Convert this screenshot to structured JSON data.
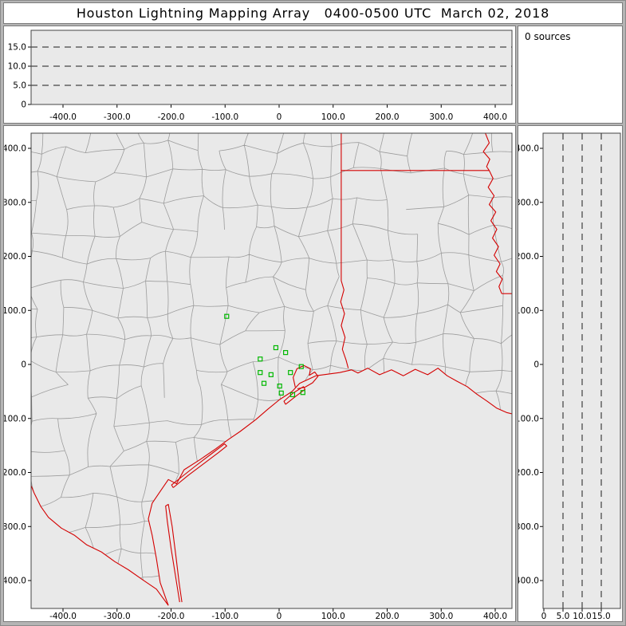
{
  "window": {
    "title": "Houston Lightning Mapping Array   0400-0500 UTC  March 02, 2018"
  },
  "status": {
    "sources": "0 sources"
  },
  "colors": {
    "plot_bg": "#e9e9e9",
    "frame": "#b5b5b5",
    "panel_border": "#7b7b7b",
    "border_red": "#d40000",
    "station_green": "#00b800",
    "county_gray": "#9c9c9c",
    "dash_black": "#1a1a1a"
  },
  "chart_data": [
    {
      "id": "altitude-vs-eastwest",
      "type": "scatter",
      "x_range": [
        -459,
        431
      ],
      "alt_range": [
        0,
        19.4
      ],
      "grid": "dashed-horizontal",
      "points": [],
      "alt_ticks": [
        {
          "v": 0,
          "label": "0"
        },
        {
          "v": 5,
          "label": "5.0"
        },
        {
          "v": 10,
          "label": "10.0"
        },
        {
          "v": 15,
          "label": "15.0"
        }
      ],
      "x_ticks": [
        {
          "v": -400,
          "label": "-400.0"
        },
        {
          "v": -300,
          "label": "-300.0"
        },
        {
          "v": -200,
          "label": "-200.0"
        },
        {
          "v": -100,
          "label": "-100.0"
        },
        {
          "v": 0,
          "label": "0"
        },
        {
          "v": 100,
          "label": "100.0"
        },
        {
          "v": 200,
          "label": "200.0"
        },
        {
          "v": 300,
          "label": "300.0"
        },
        {
          "v": 400,
          "label": "400.0"
        }
      ]
    },
    {
      "id": "plan-view-map",
      "type": "scatter",
      "x_range": [
        -459,
        431
      ],
      "y_range": [
        -452,
        428
      ],
      "points": [],
      "x_ticks": [
        {
          "v": -400,
          "label": "-400.0"
        },
        {
          "v": -300,
          "label": "-300.0"
        },
        {
          "v": -200,
          "label": "-200.0"
        },
        {
          "v": -100,
          "label": "-100.0"
        },
        {
          "v": 0,
          "label": "0"
        },
        {
          "v": 100,
          "label": "100.0"
        },
        {
          "v": 200,
          "label": "200.0"
        },
        {
          "v": 300,
          "label": "300.0"
        },
        {
          "v": 400,
          "label": "400.0"
        }
      ],
      "y_ticks": [
        {
          "v": 400,
          "label": "400.0"
        },
        {
          "v": 300,
          "label": "300.0"
        },
        {
          "v": 200,
          "label": "200.0"
        },
        {
          "v": 100,
          "label": "100.0"
        },
        {
          "v": 0,
          "label": "0"
        },
        {
          "v": -100,
          "label": "-100.0"
        },
        {
          "v": -200,
          "label": "-200.0"
        },
        {
          "v": -300,
          "label": "-300.0"
        },
        {
          "v": -400,
          "label": "-400.0"
        }
      ],
      "stations": [
        [
          -97,
          89
        ],
        [
          -6,
          31
        ],
        [
          -35,
          10
        ],
        [
          12,
          22
        ],
        [
          -35,
          -15
        ],
        [
          -15,
          -19
        ],
        [
          -28,
          -35
        ],
        [
          1,
          -40
        ],
        [
          21,
          -15
        ],
        [
          41,
          -4
        ],
        [
          4,
          -53
        ],
        [
          25,
          -56
        ],
        [
          44,
          -52
        ]
      ],
      "layers": {
        "state_borders": [
          [
            [
              115,
              430
            ],
            [
              115,
              359
            ]
          ],
          [
            [
              115,
              359
            ],
            [
              389,
              359
            ]
          ],
          [
            [
              115,
              359
            ],
            [
              115,
              155
            ],
            [
              120,
              138
            ],
            [
              114,
              116
            ],
            [
              121,
              94
            ],
            [
              115,
              72
            ],
            [
              122,
              50
            ],
            [
              117,
              28
            ],
            [
              124,
              8
            ],
            [
              128,
              -7
            ]
          ],
          [
            [
              381,
              430
            ],
            [
              389,
              410
            ],
            [
              378,
              394
            ],
            [
              390,
              380
            ],
            [
              384,
              366
            ],
            [
              389,
              359
            ],
            [
              396,
              344
            ],
            [
              387,
              328
            ],
            [
              398,
              312
            ],
            [
              389,
              296
            ],
            [
              401,
              282
            ],
            [
              392,
              266
            ],
            [
              403,
              250
            ],
            [
              395,
              234
            ],
            [
              406,
              218
            ],
            [
              398,
              202
            ],
            [
              409,
              186
            ],
            [
              402,
              172
            ],
            [
              413,
              158
            ],
            [
              407,
              144
            ],
            [
              412,
              131
            ]
          ],
          [
            [
              412,
              131
            ],
            [
              433,
              131
            ]
          ]
        ],
        "coastline": [
          [
            -205,
            -446
          ],
          [
            -220,
            -404
          ],
          [
            -227,
            -360
          ],
          [
            -235,
            -316
          ],
          [
            -242,
            -286
          ],
          [
            -235,
            -257
          ],
          [
            -220,
            -235
          ],
          [
            -205,
            -213
          ],
          [
            -190,
            -221
          ],
          [
            -176,
            -195
          ],
          [
            -146,
            -176
          ],
          [
            -117,
            -156
          ],
          [
            -94,
            -139
          ],
          [
            -72,
            -124
          ],
          [
            -43,
            -102
          ],
          [
            -21,
            -83
          ],
          [
            1,
            -65
          ],
          [
            24,
            -50
          ],
          [
            38,
            -35
          ],
          [
            68,
            -21
          ],
          [
            90,
            -18
          ],
          [
            112,
            -15
          ],
          [
            134,
            -10
          ],
          [
            146,
            -16
          ],
          [
            164,
            -7
          ],
          [
            186,
            -19
          ],
          [
            208,
            -10
          ],
          [
            230,
            -21
          ],
          [
            252,
            -9
          ],
          [
            275,
            -19
          ],
          [
            294,
            -7
          ],
          [
            311,
            -21
          ],
          [
            329,
            -31
          ],
          [
            348,
            -41
          ],
          [
            366,
            -55
          ],
          [
            385,
            -68
          ],
          [
            403,
            -81
          ],
          [
            421,
            -89
          ],
          [
            438,
            -93
          ]
        ],
        "rio_grande": [
          [
            -205,
            -446
          ],
          [
            -227,
            -416
          ],
          [
            -252,
            -399
          ],
          [
            -279,
            -380
          ],
          [
            -304,
            -365
          ],
          [
            -329,
            -347
          ],
          [
            -356,
            -334
          ],
          [
            -379,
            -316
          ],
          [
            -403,
            -303
          ],
          [
            -427,
            -283
          ],
          [
            -441,
            -263
          ],
          [
            -453,
            -239
          ],
          [
            -460,
            -222
          ]
        ],
        "islands": [
          [
            [
              -184,
              -440
            ],
            [
              -192,
              -390
            ],
            [
              -200,
              -340
            ],
            [
              -207,
              -290
            ],
            [
              -210,
              -262
            ],
            [
              -205,
              -259
            ],
            [
              -198,
              -300
            ],
            [
              -191,
              -355
            ],
            [
              -185,
              -405
            ],
            [
              -180,
              -440
            ]
          ],
          [
            [
              -196,
              -228
            ],
            [
              -168,
              -205
            ],
            [
              -140,
              -184
            ],
            [
              -112,
              -163
            ],
            [
              -97,
              -151
            ],
            [
              -101,
              -147
            ],
            [
              -126,
              -166
            ],
            [
              -156,
              -189
            ],
            [
              -184,
              -211
            ],
            [
              -199,
              -223
            ],
            [
              -196,
              -228
            ]
          ],
          [
            [
              12,
              -74
            ],
            [
              32,
              -58
            ],
            [
              48,
              -46
            ],
            [
              45,
              -41
            ],
            [
              26,
              -53
            ],
            [
              9,
              -68
            ],
            [
              12,
              -74
            ]
          ]
        ],
        "bays": [
          [
            [
              30,
              -42
            ],
            [
              26,
              -24
            ],
            [
              33,
              -8
            ],
            [
              46,
              -2
            ],
            [
              58,
              -8
            ],
            [
              56,
              -20
            ],
            [
              66,
              -14
            ],
            [
              72,
              -22
            ],
            [
              62,
              -34
            ],
            [
              48,
              -42
            ],
            [
              34,
              -45
            ]
          ]
        ]
      },
      "county_grid": {
        "x0": -500,
        "y0": -500,
        "step": 50,
        "nx": 20,
        "ny": 20,
        "jitter": 15,
        "bend": 6,
        "skip": 0.08,
        "seed": 1337
      }
    },
    {
      "id": "altitude-vs-northsouth",
      "type": "scatter",
      "alt_range": [
        0,
        19.4
      ],
      "y_range": [
        -452,
        428
      ],
      "grid": "dashed-vertical",
      "points": [],
      "alt_ticks": [
        {
          "v": 0,
          "label": "0"
        },
        {
          "v": 5,
          "label": "5.0"
        },
        {
          "v": 10,
          "label": "10.0"
        },
        {
          "v": 15,
          "label": "15.0"
        }
      ],
      "y_ticks": [
        {
          "v": 400,
          "label": "400.0"
        },
        {
          "v": 300,
          "label": "300.0"
        },
        {
          "v": 200,
          "label": "200.0"
        },
        {
          "v": 100,
          "label": "100.0"
        },
        {
          "v": 0,
          "label": "0"
        },
        {
          "v": -100,
          "label": "-100.0"
        },
        {
          "v": -200,
          "label": "-200.0"
        },
        {
          "v": -300,
          "label": "-300.0"
        },
        {
          "v": -400,
          "label": "-400.0"
        }
      ]
    }
  ]
}
